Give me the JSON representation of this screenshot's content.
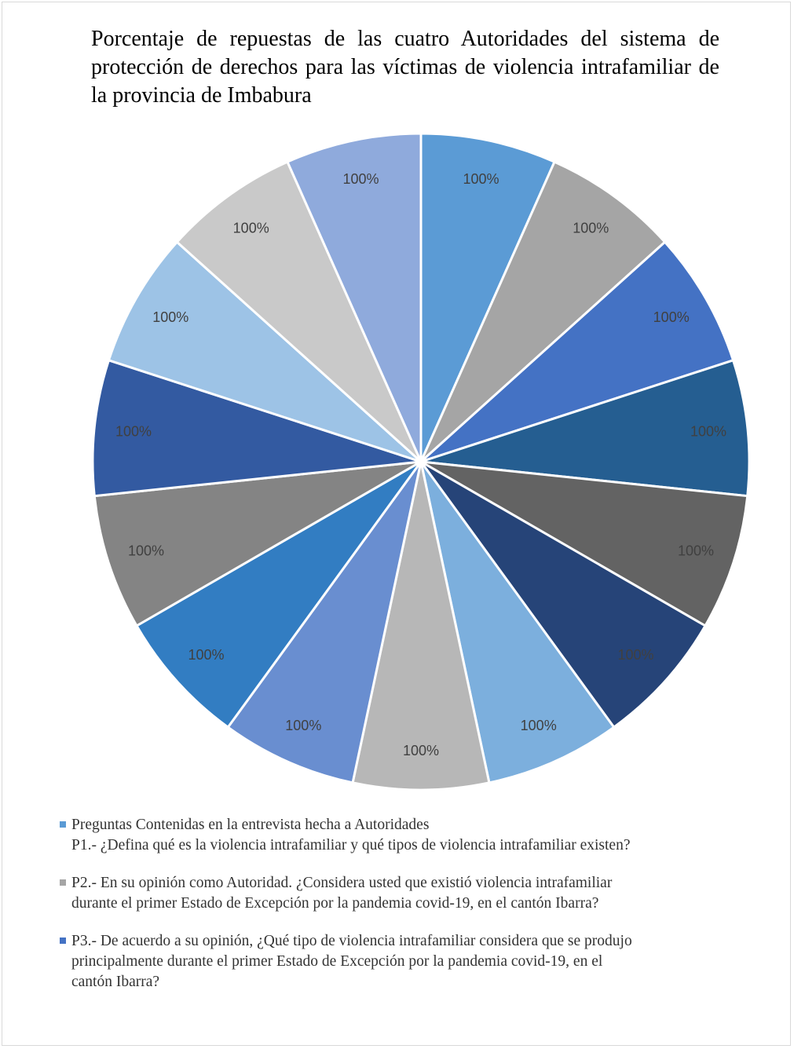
{
  "chart_data": {
    "type": "pie",
    "title": "Porcentaje de repuestas de las cuatro Autoridades del sistema de protección de derechos para las víctimas de violencia intrafamiliar de la provincia de Imbabura",
    "slices": [
      {
        "value": 1,
        "label": "100%",
        "color": "#5b9bd5"
      },
      {
        "value": 1,
        "label": "100%",
        "color": "#a5a5a5"
      },
      {
        "value": 1,
        "label": "100%",
        "color": "#4472c4"
      },
      {
        "value": 1,
        "label": "100%",
        "color": "#255e91"
      },
      {
        "value": 1,
        "label": "100%",
        "color": "#636363"
      },
      {
        "value": 1,
        "label": "100%",
        "color": "#264478"
      },
      {
        "value": 1,
        "label": "100%",
        "color": "#7cafdd"
      },
      {
        "value": 1,
        "label": "100%",
        "color": "#b7b7b7"
      },
      {
        "value": 1,
        "label": "100%",
        "color": "#698ed0"
      },
      {
        "value": 1,
        "label": "100%",
        "color": "#327dc2"
      },
      {
        "value": 1,
        "label": "100%",
        "color": "#848484"
      },
      {
        "value": 1,
        "label": "100%",
        "color": "#335aa1"
      },
      {
        "value": 1,
        "label": "100%",
        "color": "#9dc3e6"
      },
      {
        "value": 1,
        "label": "100%",
        "color": "#c9c9c9"
      },
      {
        "value": 1,
        "label": "100%",
        "color": "#8faadc"
      }
    ],
    "legend": [
      {
        "text": "Preguntas Contenidas en la entrevista hecha a Autoridades\nP1.- ¿Defina qué es la violencia intrafamiliar y qué tipos de violencia intrafamiliar existen?",
        "color": "#5b9bd5"
      },
      {
        "text": "P2.- En su opinión como Autoridad. ¿Considera usted que existió violencia intrafamiliar\ndurante el primer Estado de Excepción por la pandemia covid-19, en el cantón Ibarra?",
        "color": "#a5a5a5"
      },
      {
        "text": "P3.- De acuerdo a su opinión, ¿Qué tipo de violencia intrafamiliar considera que se produjo\nprincipalmente durante el primer Estado de Excepción por la pandemia covid-19, en el\ncantón Ibarra?",
        "color": "#4472c4"
      }
    ]
  }
}
